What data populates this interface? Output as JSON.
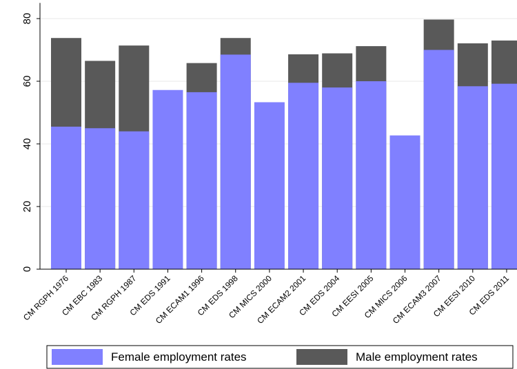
{
  "chart_data": {
    "type": "bar",
    "overlay": true,
    "categories": [
      "CM RGPH 1976",
      "CM EBC 1983",
      "CM RGPH 1987",
      "CM EDS 1991",
      "CM ECAM1 1996",
      "CM EDS 1998",
      "CM MICS 2000",
      "CM ECAM2 2001",
      "CM EDS 2004",
      "CM EESI 2005",
      "CM MICS 2006",
      "CM ECAM3 2007",
      "CM EESI 2010",
      "CM EDS 2011"
    ],
    "series": [
      {
        "name": "Male employment rates",
        "color": "#595959",
        "values": [
          73.8,
          66.5,
          71.4,
          null,
          65.8,
          73.8,
          null,
          68.6,
          68.9,
          71.2,
          null,
          79.7,
          72.1,
          73.0
        ]
      },
      {
        "name": "Female employment rates",
        "color": "#8080ff",
        "values": [
          45.5,
          45.0,
          44.0,
          57.2,
          56.5,
          68.5,
          53.3,
          59.5,
          58.0,
          60.0,
          42.7,
          70.0,
          58.4,
          59.2
        ]
      }
    ],
    "ylim": [
      0,
      85
    ],
    "yticks": [
      0,
      20,
      40,
      60,
      80
    ],
    "grid": true
  }
}
